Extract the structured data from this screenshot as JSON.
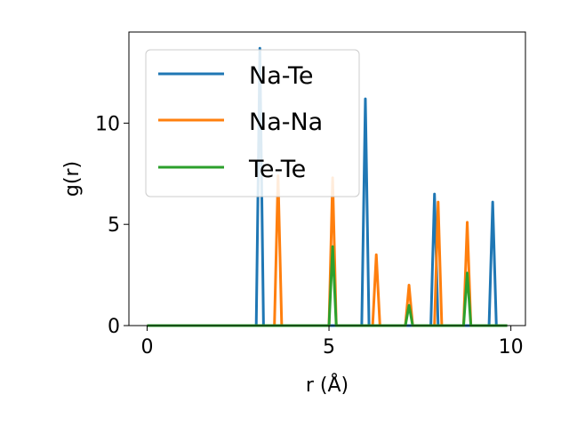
{
  "chart_data": {
    "type": "line",
    "xlabel": "r (Å)",
    "ylabel": "g(r)",
    "xlim": [
      -0.5,
      10.4
    ],
    "ylim": [
      0,
      14.5
    ],
    "xticks": [
      0,
      5,
      10
    ],
    "yticks": [
      0,
      5,
      10
    ],
    "grid": false,
    "legend_position": "top-left",
    "series": [
      {
        "name": "Na-Te",
        "color": "#1f77b4",
        "x": [
          0,
          3.0,
          3.1,
          3.2,
          5.9,
          6.0,
          6.1,
          7.8,
          7.9,
          8.0,
          9.4,
          9.5,
          9.6,
          9.9
        ],
        "y": [
          0,
          0,
          13.7,
          0,
          0,
          11.2,
          0,
          0,
          6.5,
          0,
          0,
          6.1,
          0,
          0
        ]
      },
      {
        "name": "Na-Na",
        "color": "#ff7f0e",
        "x": [
          0,
          3.5,
          3.6,
          3.7,
          5.0,
          5.1,
          5.2,
          6.2,
          6.3,
          6.4,
          7.1,
          7.2,
          7.3,
          7.9,
          8.0,
          8.1,
          8.7,
          8.8,
          8.9,
          9.9
        ],
        "y": [
          0,
          0,
          7.4,
          0,
          0,
          7.3,
          0,
          0,
          3.5,
          0,
          0,
          2.0,
          0,
          0,
          6.1,
          0,
          0,
          5.1,
          0,
          0
        ]
      },
      {
        "name": "Te-Te",
        "color": "#2ca02c",
        "x": [
          0,
          5.0,
          5.1,
          5.2,
          7.1,
          7.2,
          7.3,
          8.7,
          8.8,
          8.9,
          9.9
        ],
        "y": [
          0,
          0,
          3.9,
          0,
          0,
          1.0,
          0,
          0,
          2.6,
          0,
          0
        ]
      }
    ]
  }
}
